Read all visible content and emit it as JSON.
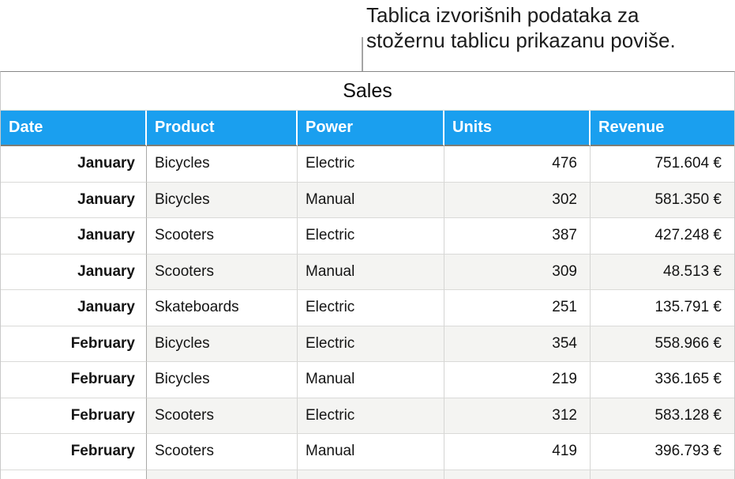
{
  "annotation": {
    "line1": "Tablica izvorišnih podataka za",
    "line2": "stožernu tablicu prikazanu poviše."
  },
  "table": {
    "title": "Sales",
    "columns": [
      {
        "key": "date",
        "label": "Date"
      },
      {
        "key": "product",
        "label": "Product"
      },
      {
        "key": "power",
        "label": "Power"
      },
      {
        "key": "units",
        "label": "Units"
      },
      {
        "key": "revenue",
        "label": "Revenue"
      }
    ],
    "rows": [
      {
        "date": "January",
        "product": "Bicycles",
        "power": "Electric",
        "units": "476",
        "revenue": "751.604 €"
      },
      {
        "date": "January",
        "product": "Bicycles",
        "power": "Manual",
        "units": "302",
        "revenue": "581.350 €"
      },
      {
        "date": "January",
        "product": "Scooters",
        "power": "Electric",
        "units": "387",
        "revenue": "427.248 €"
      },
      {
        "date": "January",
        "product": "Scooters",
        "power": "Manual",
        "units": "309",
        "revenue": "48.513 €"
      },
      {
        "date": "January",
        "product": "Skateboards",
        "power": "Electric",
        "units": "251",
        "revenue": "135.791 €"
      },
      {
        "date": "February",
        "product": "Bicycles",
        "power": "Electric",
        "units": "354",
        "revenue": "558.966 €"
      },
      {
        "date": "February",
        "product": "Bicycles",
        "power": "Manual",
        "units": "219",
        "revenue": "336.165 €"
      },
      {
        "date": "February",
        "product": "Scooters",
        "power": "Electric",
        "units": "312",
        "revenue": "583.128 €"
      },
      {
        "date": "February",
        "product": "Scooters",
        "power": "Manual",
        "units": "419",
        "revenue": "396.793 €"
      }
    ],
    "partial_row_visible": true
  },
  "colors": {
    "header_bg": "#1A9FEF",
    "header_text": "#FFFFFF",
    "stripe_bg": "#F4F4F2"
  }
}
